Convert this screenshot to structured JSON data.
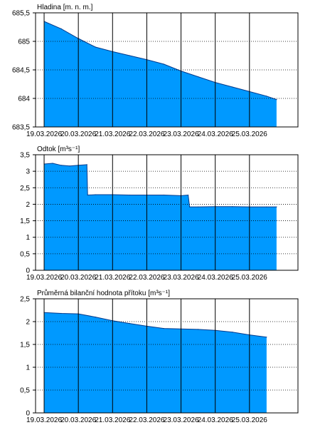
{
  "chart_data": [
    {
      "type": "area",
      "title": "Hladina [m. n. m.]",
      "x": [
        "2026-03-19T00:00",
        "2026-03-19T12:00",
        "2026-03-20T00:00",
        "2026-03-20T12:00",
        "2026-03-21T00:00",
        "2026-03-21T12:00",
        "2026-03-22T00:00",
        "2026-03-22T12:00",
        "2026-03-23T00:00",
        "2026-03-23T12:00",
        "2026-03-24T00:00",
        "2026-03-24T12:00",
        "2026-03-25T00:00",
        "2026-03-25T12:00",
        "2026-03-25T19:00"
      ],
      "values": [
        685.35,
        685.22,
        685.05,
        684.9,
        684.82,
        684.75,
        684.68,
        684.6,
        684.48,
        684.38,
        684.28,
        684.2,
        684.12,
        684.04,
        683.98
      ],
      "ylim": [
        683.5,
        685.5
      ],
      "yticks": [
        683.5,
        684,
        684.5,
        685,
        685.5
      ],
      "ytick_labels": [
        "683,5",
        "684",
        "684,5",
        "685",
        "685,5"
      ],
      "xlim": [
        "2026-03-18T18:00",
        "2026-03-26T10:00"
      ],
      "xtick_labels": [
        "19.03.2026",
        "20.03.2026",
        "21.03.2026",
        "22.03.2026",
        "23.03.2026",
        "24.03.2026",
        "25.03.2026"
      ],
      "grid": true,
      "fill_color": "#0099ff"
    },
    {
      "type": "area",
      "title": "Odtok [m³s⁻¹]",
      "x": [
        "2026-03-19T00:00",
        "2026-03-19T06:00",
        "2026-03-19T12:00",
        "2026-03-19T18:00",
        "2026-03-20T00:00",
        "2026-03-20T06:00",
        "2026-03-20T06:30",
        "2026-03-20T12:00",
        "2026-03-21T00:00",
        "2026-03-21T12:00",
        "2026-03-22T00:00",
        "2026-03-22T12:00",
        "2026-03-23T00:00",
        "2026-03-23T05:00",
        "2026-03-23T06:00",
        "2026-03-23T12:00",
        "2026-03-24T00:00",
        "2026-03-24T12:00",
        "2026-03-25T00:00",
        "2026-03-25T12:00",
        "2026-03-25T19:00"
      ],
      "values": [
        3.22,
        3.24,
        3.18,
        3.16,
        3.18,
        3.2,
        2.28,
        2.29,
        2.29,
        2.28,
        2.28,
        2.28,
        2.26,
        2.28,
        1.92,
        1.92,
        1.93,
        1.93,
        1.92,
        1.92,
        1.92
      ],
      "ylim": [
        0,
        3.5
      ],
      "yticks": [
        0,
        0.5,
        1,
        1.5,
        2,
        2.5,
        3,
        3.5
      ],
      "ytick_labels": [
        "0",
        "0,5",
        "1",
        "1,5",
        "2",
        "2,5",
        "3",
        "3,5"
      ],
      "xlim": [
        "2026-03-18T18:00",
        "2026-03-26T10:00"
      ],
      "xtick_labels": [
        "19.03.2026",
        "20.03.2026",
        "21.03.2026",
        "22.03.2026",
        "23.03.2026",
        "24.03.2026",
        "25.03.2026"
      ],
      "grid": true,
      "fill_color": "#0099ff"
    },
    {
      "type": "area",
      "title": "Průměrná bilanční hodnota přítoku [m³s⁻¹]",
      "x": [
        "2026-03-19T00:00",
        "2026-03-19T12:00",
        "2026-03-20T00:00",
        "2026-03-20T12:00",
        "2026-03-21T00:00",
        "2026-03-21T12:00",
        "2026-03-22T00:00",
        "2026-03-22T12:00",
        "2026-03-23T00:00",
        "2026-03-23T12:00",
        "2026-03-24T00:00",
        "2026-03-24T12:00",
        "2026-03-25T00:00",
        "2026-03-25T12:00"
      ],
      "values": [
        2.2,
        2.18,
        2.17,
        2.1,
        2.02,
        1.96,
        1.9,
        1.85,
        1.84,
        1.83,
        1.81,
        1.77,
        1.71,
        1.66
      ],
      "ylim": [
        0,
        2.5
      ],
      "yticks": [
        0,
        0.5,
        1,
        1.5,
        2,
        2.5
      ],
      "ytick_labels": [
        "0",
        "0,5",
        "1",
        "1,5",
        "2",
        "2,5"
      ],
      "xlim": [
        "2026-03-18T18:00",
        "2026-03-26T10:00"
      ],
      "xtick_labels": [
        "19.03.2026",
        "20.03.2026",
        "21.03.2026",
        "22.03.2026",
        "23.03.2026",
        "24.03.2026",
        "25.03.2026"
      ],
      "grid": true,
      "fill_color": "#0099ff"
    }
  ]
}
